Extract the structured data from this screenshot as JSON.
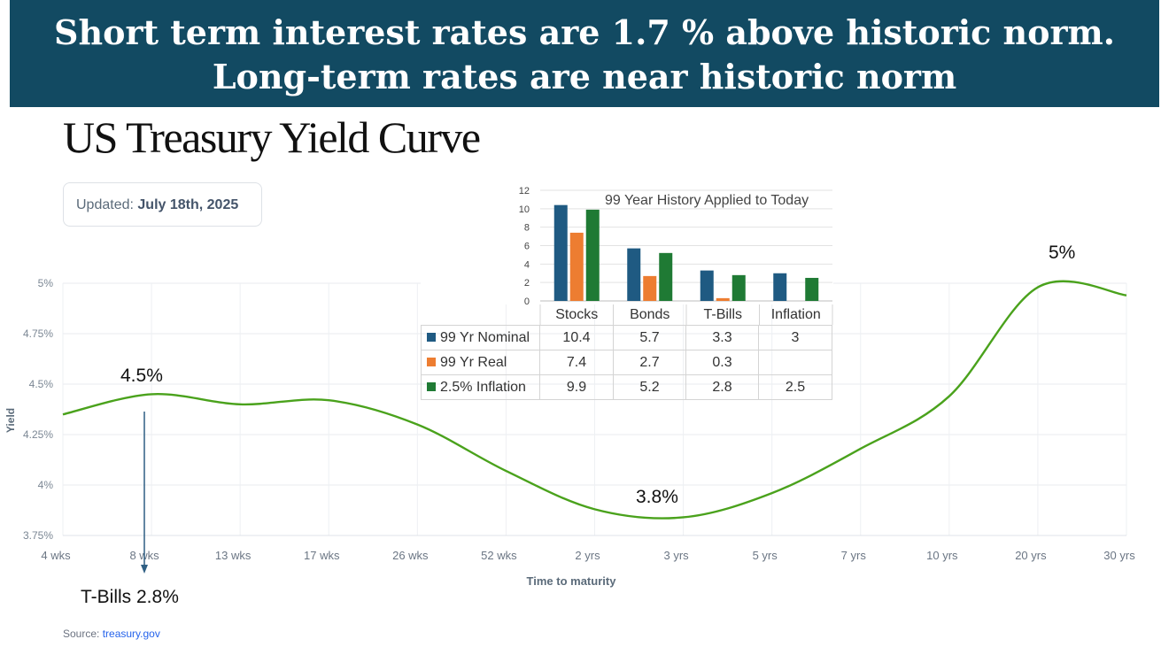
{
  "banner": {
    "line1": "Short term interest rates are 1.7 % above historic norm.",
    "line2": "Long-term rates are near historic norm"
  },
  "page_title": "US Treasury Yield Curve",
  "updated": {
    "label": "Updated:",
    "date": "July 18th, 2025"
  },
  "source": {
    "label": "Source:",
    "link_text": "treasury.gov"
  },
  "annotations": {
    "short_peak": "4.5%",
    "trough": "3.8%",
    "long_peak": "5%",
    "tbills": "T-Bills 2.8%"
  },
  "chart_data": [
    {
      "type": "line",
      "title": "",
      "xlabel": "Time to maturity",
      "ylabel": "Yield",
      "x": [
        "4 wks",
        "8 wks",
        "13 wks",
        "17 wks",
        "26 wks",
        "52 wks",
        "2 yrs",
        "3 yrs",
        "5 yrs",
        "7 yrs",
        "10 yrs",
        "20 yrs",
        "30 yrs"
      ],
      "y": [
        4.35,
        4.45,
        4.4,
        4.42,
        4.3,
        4.07,
        3.88,
        3.84,
        3.96,
        4.18,
        4.44,
        4.98,
        4.94
      ],
      "ylim": [
        3.75,
        5.0
      ],
      "yticks": [
        3.75,
        4.0,
        4.25,
        4.5,
        4.75,
        5.0
      ],
      "ytick_labels": [
        "3.75%",
        "4%",
        "4.25%",
        "4.5%",
        "4.75%",
        "5%"
      ],
      "grid": true,
      "color": "#4aa21c"
    },
    {
      "type": "bar",
      "title": "99 Year History Applied to Today",
      "categories": [
        "Stocks",
        "Bonds",
        "T-Bills",
        "Inflation"
      ],
      "ylim": [
        0,
        12
      ],
      "yticks": [
        0,
        2,
        4,
        6,
        8,
        10,
        12
      ],
      "series": [
        {
          "name": "99 Yr Nominal",
          "color": "#1f5a82",
          "values": [
            10.4,
            5.7,
            3.3,
            3
          ]
        },
        {
          "name": "99 Yr Real",
          "color": "#ed7d31",
          "values": [
            7.4,
            2.7,
            0.3,
            null
          ]
        },
        {
          "name": "2.5% Inflation",
          "color": "#1f7a34",
          "values": [
            9.9,
            5.2,
            2.8,
            2.5
          ]
        }
      ],
      "table_values": [
        [
          "10.4",
          "5.7",
          "3.3",
          "3"
        ],
        [
          "7.4",
          "2.7",
          "0.3",
          ""
        ],
        [
          "9.9",
          "5.2",
          "2.8",
          "2.5"
        ]
      ]
    }
  ]
}
